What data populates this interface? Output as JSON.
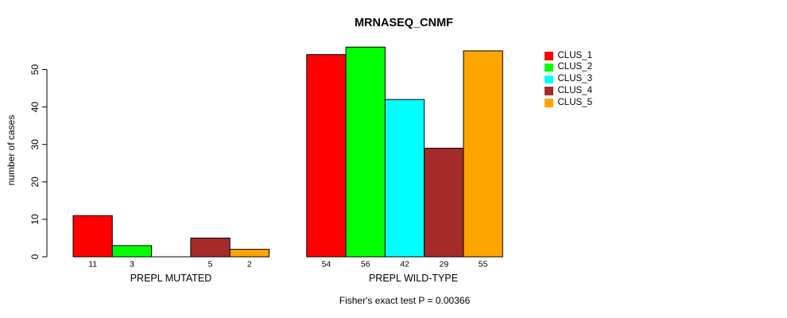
{
  "figure": {
    "title": "MRNASEQ_CNMF",
    "annotation": "Fisher's exact test P = 0.00366"
  },
  "chart_data": {
    "type": "bar",
    "title": "MRNASEQ_CNMF",
    "xlabel": "",
    "ylabel": "number of cases",
    "annotation": "Fisher's exact test P = 0.00366",
    "ylim": [
      0,
      56
    ],
    "yticks": [
      0,
      10,
      20,
      30,
      40,
      50
    ],
    "grid": false,
    "legend_position": "right",
    "series_names": [
      "CLUS_1",
      "CLUS_2",
      "CLUS_3",
      "CLUS_4",
      "CLUS_5"
    ],
    "colors": [
      "#FF0000",
      "#00FF00",
      "#00FFFF",
      "#A52A2A",
      "#FFA500"
    ],
    "bar_border_color": "#000000",
    "groups": [
      {
        "label": "PREPL MUTATED",
        "values": [
          11,
          3,
          0,
          5,
          2
        ],
        "bar_labels": [
          "11",
          "3",
          "",
          "5",
          "2"
        ]
      },
      {
        "label": "PREPL WILD-TYPE",
        "values": [
          54,
          56,
          42,
          29,
          55
        ],
        "bar_labels": [
          "54",
          "56",
          "42",
          "29",
          "55"
        ]
      }
    ]
  }
}
